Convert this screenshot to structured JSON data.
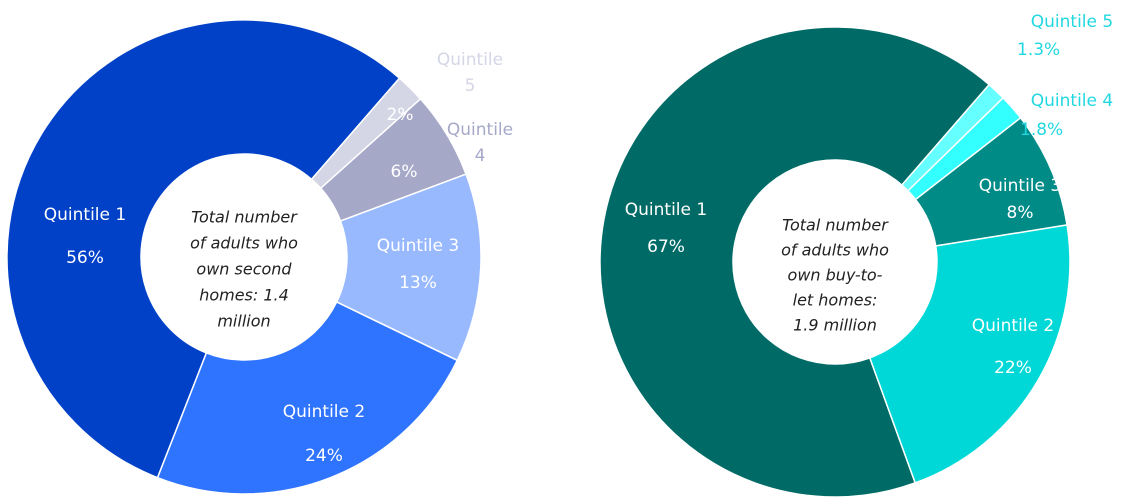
{
  "chart_data": [
    {
      "type": "donut",
      "categories": [
        "Quintile 1",
        "Quintile 2",
        "Quintile 3",
        "Quintile 4",
        "Quintile 5"
      ],
      "values": [
        56,
        24,
        13,
        6,
        2
      ],
      "value_labels": [
        "56%",
        "24%",
        "13%",
        "6%",
        "2%"
      ],
      "colors": [
        "#0041c8",
        "#2f74ff",
        "#99b9ff",
        "#a6a8c8",
        "#d4d6e6"
      ],
      "annotation": [
        "Total number",
        "of adults who",
        "own second",
        "homes: 1.4",
        "million"
      ]
    },
    {
      "type": "donut",
      "categories": [
        "Quintile 1",
        "Quintile 2",
        "Quintile 3",
        "Quintile 4",
        "Quintile 5"
      ],
      "values": [
        67,
        22,
        8,
        1.8,
        1.3
      ],
      "value_labels": [
        "67%",
        "22%",
        "8%",
        "1.8%",
        "1.3%"
      ],
      "colors": [
        "#006b66",
        "#00d8d8",
        "#008b87",
        "#33ffff",
        "#66ffff"
      ],
      "annotation": [
        "Total number",
        "of adults who",
        "own buy-to-",
        "let homes:",
        "1.9 million"
      ]
    }
  ]
}
